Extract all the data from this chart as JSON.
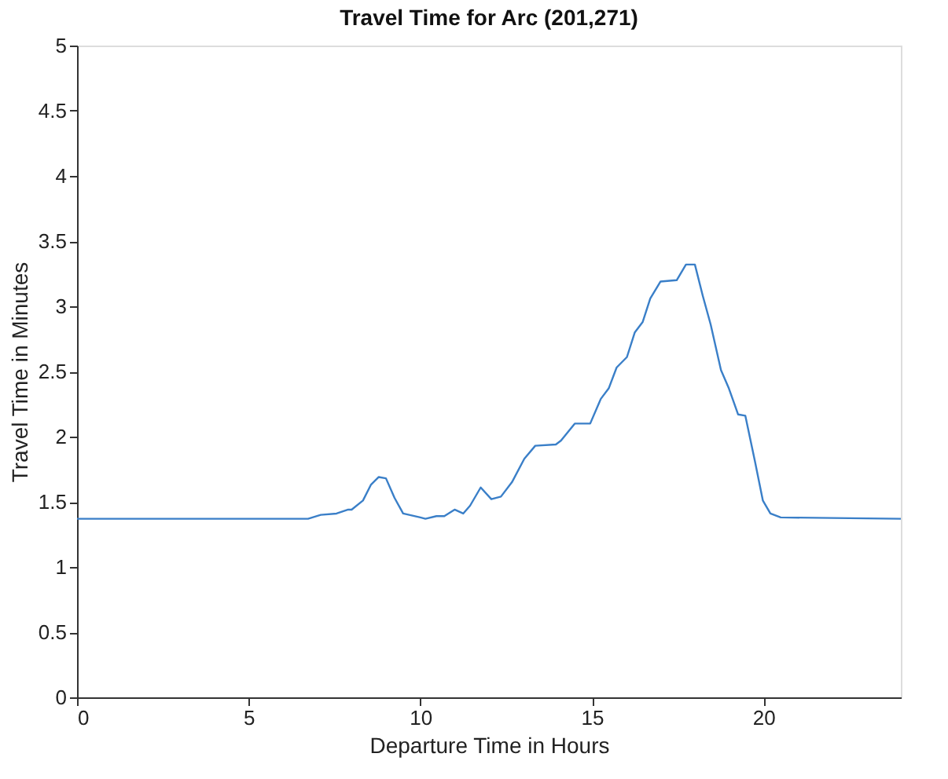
{
  "chart_data": {
    "type": "line",
    "title": "Travel Time for Arc (201,271)",
    "xlabel": "Departure Time in Hours",
    "ylabel": "Travel Time in Minutes",
    "xlim": [
      0,
      24
    ],
    "ylim": [
      0,
      5
    ],
    "xticks": [
      0,
      5,
      10,
      15,
      20
    ],
    "yticks": [
      0,
      0.5,
      1,
      1.5,
      2,
      2.5,
      3,
      3.5,
      4,
      4.5,
      5
    ],
    "grid": false,
    "series": [
      {
        "color": "#3a7fc8",
        "x": [
          0,
          6.73,
          7.1,
          7.56,
          7.9,
          8.0,
          8.33,
          8.56,
          8.79,
          9.0,
          9.25,
          9.5,
          10.0,
          10.15,
          10.47,
          10.7,
          11.0,
          11.25,
          11.45,
          11.76,
          12.07,
          12.35,
          12.67,
          13.03,
          13.35,
          13.95,
          14.1,
          14.5,
          14.95,
          15.26,
          15.49,
          15.72,
          16.02,
          16.25,
          16.48,
          16.7,
          17.0,
          17.47,
          17.74,
          18.0,
          18.23,
          18.46,
          18.76,
          18.99,
          19.26,
          19.47,
          19.75,
          19.98,
          20.2,
          20.5,
          24
        ],
        "values": [
          1.37,
          1.37,
          1.4,
          1.41,
          1.44,
          1.44,
          1.51,
          1.63,
          1.69,
          1.68,
          1.53,
          1.41,
          1.38,
          1.37,
          1.39,
          1.39,
          1.44,
          1.41,
          1.47,
          1.61,
          1.52,
          1.54,
          1.65,
          1.83,
          1.93,
          1.94,
          1.97,
          2.1,
          2.1,
          2.29,
          2.37,
          2.53,
          2.61,
          2.8,
          2.88,
          3.06,
          3.19,
          3.2,
          3.32,
          3.32,
          3.08,
          2.86,
          2.51,
          2.37,
          2.17,
          2.16,
          1.81,
          1.51,
          1.41,
          1.38,
          1.37
        ]
      }
    ]
  }
}
